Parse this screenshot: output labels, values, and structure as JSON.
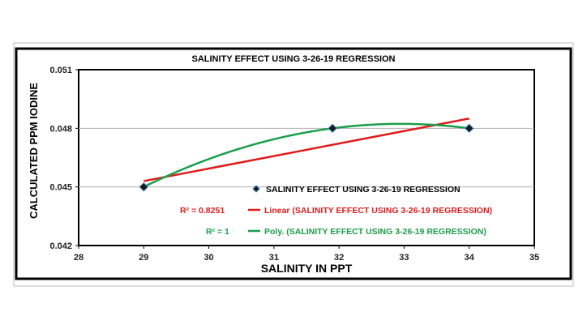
{
  "chart_data": {
    "type": "scatter",
    "title": "SALINITY EFFECT USING 3-26-19 REGRESSION",
    "xlabel": "SALINITY IN PPT",
    "ylabel": "CALCULATED PPM IODINE",
    "xlim": [
      28,
      35
    ],
    "ylim": [
      0.042,
      0.051
    ],
    "x_ticks": [
      "28",
      "29",
      "30",
      "31",
      "32",
      "33",
      "34",
      "35"
    ],
    "y_ticks": [
      "0.042",
      "0.045",
      "0.048",
      "0.051"
    ],
    "grid": "horizontal major",
    "legend_position": "inside lower-right",
    "series": [
      {
        "name": "SALINITY EFFECT USING 3-26-19 REGRESSION",
        "kind": "points",
        "marker": "diamond",
        "color": "#000000",
        "x": [
          29,
          31.9,
          34
        ],
        "y": [
          0.045,
          0.048,
          0.048
        ]
      }
    ],
    "trendlines": [
      {
        "name": "Linear (SALINITY EFFECT USING 3-26-19 REGRESSION)",
        "type": "linear",
        "color": "#e01b1b",
        "r2_label": "R² = 0.8251",
        "x": [
          29,
          34
        ],
        "y": [
          0.0453,
          0.0485
        ]
      },
      {
        "name": "Poly. (SALINITY EFFECT USING 3-26-19 REGRESSION)",
        "type": "polynomial",
        "color": "#1a9e4a",
        "r2_label": "R² = 1",
        "x": [
          29,
          31.9,
          34
        ],
        "y": [
          0.045,
          0.048,
          0.048
        ]
      }
    ]
  }
}
